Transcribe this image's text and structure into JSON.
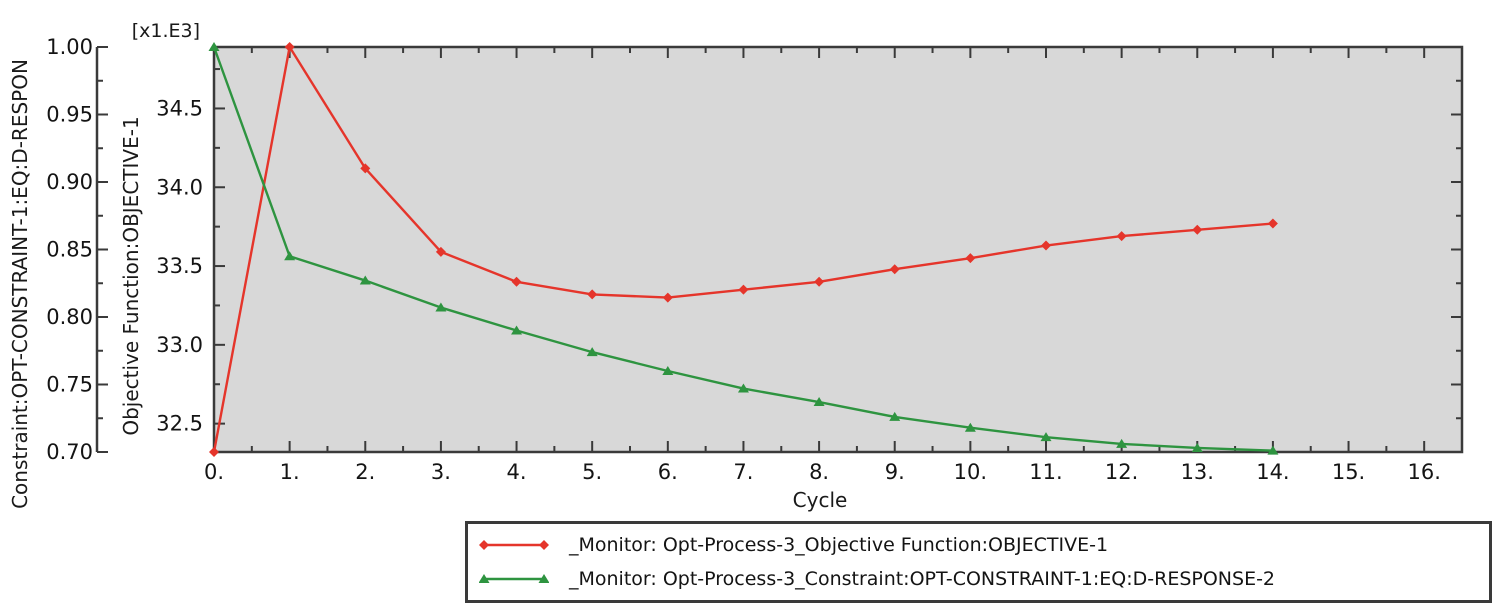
{
  "chart_data": {
    "type": "line",
    "x_axis": {
      "label": "Cycle",
      "range": [
        0,
        16.5
      ],
      "major_ticks": [
        0,
        1,
        2,
        3,
        4,
        5,
        6,
        7,
        8,
        9,
        10,
        11,
        12,
        13,
        14,
        15,
        16
      ],
      "tick_labels": [
        "0.",
        "1.",
        "2.",
        "3.",
        "4.",
        "5.",
        "6.",
        "7.",
        "8.",
        "9.",
        "10.",
        "11.",
        "12.",
        "13.",
        "14.",
        "15.",
        "16."
      ],
      "minor_step": 0.5
    },
    "objective_axis": {
      "label": "Objective Function:OBJECTIVE-1",
      "scale_note": "[x1.E3]",
      "range": [
        32.32,
        34.89
      ],
      "major_ticks": [
        32.5,
        33.0,
        33.5,
        34.0,
        34.5
      ],
      "tick_labels": [
        "32.5",
        "33.0",
        "33.5",
        "34.0",
        "34.5"
      ],
      "minor_step": 0.25
    },
    "constraint_axis": {
      "label": "Constraint:OPT-CONSTRAINT-1:EQ:D-RESPON",
      "range": [
        0.7,
        1.0
      ],
      "major_ticks": [
        0.7,
        0.75,
        0.8,
        0.85,
        0.9,
        0.95,
        1.0
      ],
      "tick_labels": [
        "0.70",
        "0.75",
        "0.80",
        "0.85",
        "0.90",
        "0.95",
        "1.00"
      ],
      "minor_step": 0.025
    },
    "x": [
      0,
      1,
      2,
      3,
      4,
      5,
      6,
      7,
      8,
      9,
      10,
      11,
      12,
      13,
      14
    ],
    "series": [
      {
        "name": "_Monitor: Opt-Process-3_Objective Function:OBJECTIVE-1",
        "axis": "objective",
        "color": "#e5352b",
        "marker": "diamond",
        "values": [
          32.32,
          34.89,
          34.12,
          33.59,
          33.4,
          33.32,
          33.3,
          33.35,
          33.4,
          33.48,
          33.55,
          33.63,
          33.69,
          33.73,
          33.77
        ]
      },
      {
        "name": "_Monitor: Opt-Process-3_Constraint:OPT-CONSTRAINT-1:EQ:D-RESPONSE-2",
        "axis": "constraint",
        "color": "#2e9440",
        "marker": "triangle",
        "values": [
          1.0,
          0.845,
          0.827,
          0.807,
          0.79,
          0.774,
          0.76,
          0.747,
          0.737,
          0.726,
          0.718,
          0.711,
          0.706,
          0.703,
          0.701
        ]
      }
    ],
    "legend": {
      "entries": [
        "_Monitor: Opt-Process-3_Objective Function:OBJECTIVE-1",
        "_Monitor: Opt-Process-3_Constraint:OPT-CONSTRAINT-1:EQ:D-RESPONSE-2"
      ]
    },
    "colors": {
      "plot_bg": "#d8d8d8",
      "frame": "#3a3a3a",
      "text": "#141414",
      "legend_bg": "#ffffff"
    }
  }
}
